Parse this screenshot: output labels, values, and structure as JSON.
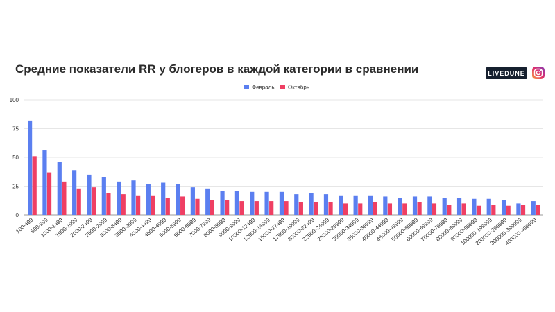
{
  "header": {
    "title": "Средние показатели RR у блогеров в каждой категории в сравнении",
    "brand": "LIVEDUNE",
    "brand_icon": "instagram-icon"
  },
  "colors": {
    "series1": "#5b7ff0",
    "series2": "#ef3f63",
    "grid": "#e6e6e6",
    "axis": "#999999"
  },
  "chart_data": {
    "type": "bar",
    "title": "Средние показатели RR у блогеров в каждой категории в сравнении",
    "xlabel": "",
    "ylabel": "",
    "ylim": [
      0,
      100
    ],
    "yticks": [
      0,
      25,
      50,
      75,
      100
    ],
    "grid": true,
    "legend_position": "top-center",
    "categories": [
      "100-499",
      "500-999",
      "1000-1499",
      "1500-1999",
      "2000-2499",
      "2500-2999",
      "3000-3499",
      "3500-3999",
      "4000-4499",
      "4500-4999",
      "5000-5999",
      "6000-6999",
      "7000-7999",
      "8000-8999",
      "9000-9999",
      "10000-12499",
      "12500-14999",
      "15000-17499",
      "17500-19999",
      "20000-22499",
      "22500-24999",
      "25000-29999",
      "30000-34999",
      "35000-39999",
      "40000-44999",
      "45000-49999",
      "50000-59999",
      "60000-69999",
      "70000-79999",
      "80000-89999",
      "90000-99999",
      "100000-199999",
      "200000-299999",
      "300000-399999",
      "400000-499999"
    ],
    "series": [
      {
        "name": "Февраль",
        "values": [
          82,
          56,
          46,
          39,
          35,
          33,
          29,
          30,
          27,
          28,
          27,
          24,
          23,
          21,
          21,
          20,
          20,
          20,
          18,
          19,
          18,
          17,
          17,
          17,
          16,
          15,
          16,
          16,
          15,
          15,
          14,
          14,
          13,
          10,
          12
        ]
      },
      {
        "name": "Октябрь",
        "values": [
          51,
          37,
          29,
          23,
          24,
          19,
          18,
          17,
          17,
          15,
          16,
          14,
          13,
          13,
          12,
          12,
          12,
          12,
          11,
          11,
          11,
          10,
          10,
          11,
          10,
          10,
          11,
          10,
          9,
          10,
          8,
          9,
          8,
          9,
          9
        ]
      }
    ]
  }
}
